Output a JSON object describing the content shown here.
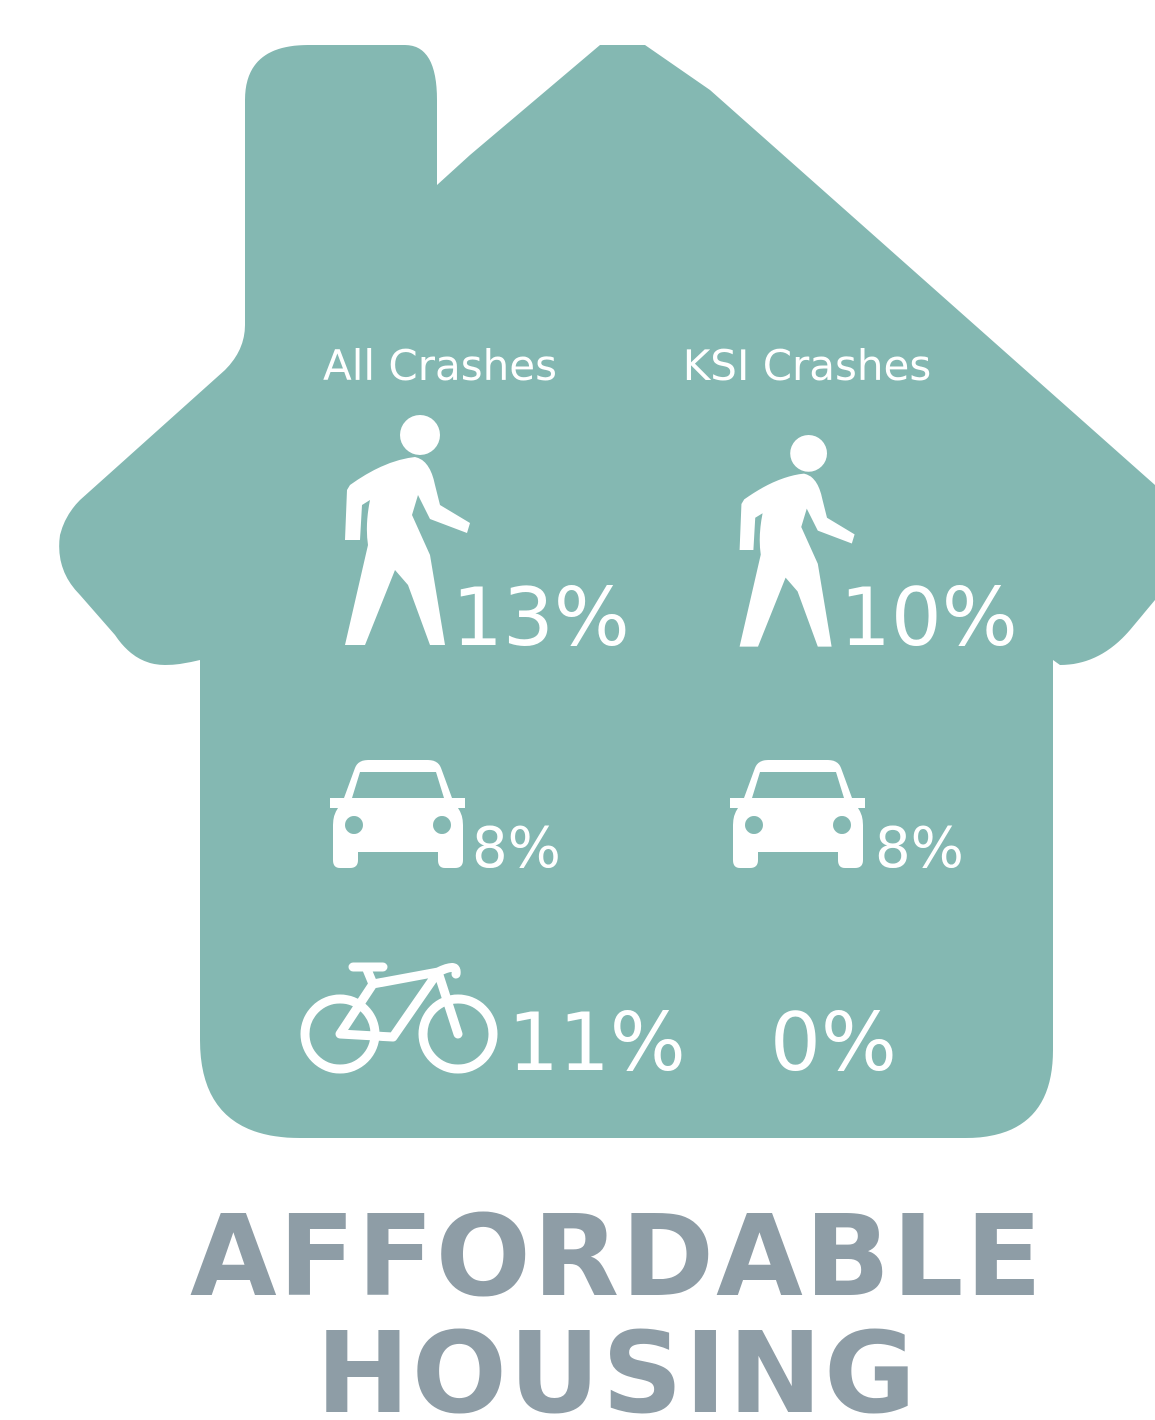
{
  "columns": [
    {
      "heading": "All Crashes",
      "values": [
        "13%",
        "8%",
        "11%"
      ]
    },
    {
      "heading": "KSI Crashes",
      "values": [
        "10%",
        "8%",
        "0%"
      ]
    }
  ],
  "title": [
    "AFFORDABLE",
    "HOUSING"
  ]
}
